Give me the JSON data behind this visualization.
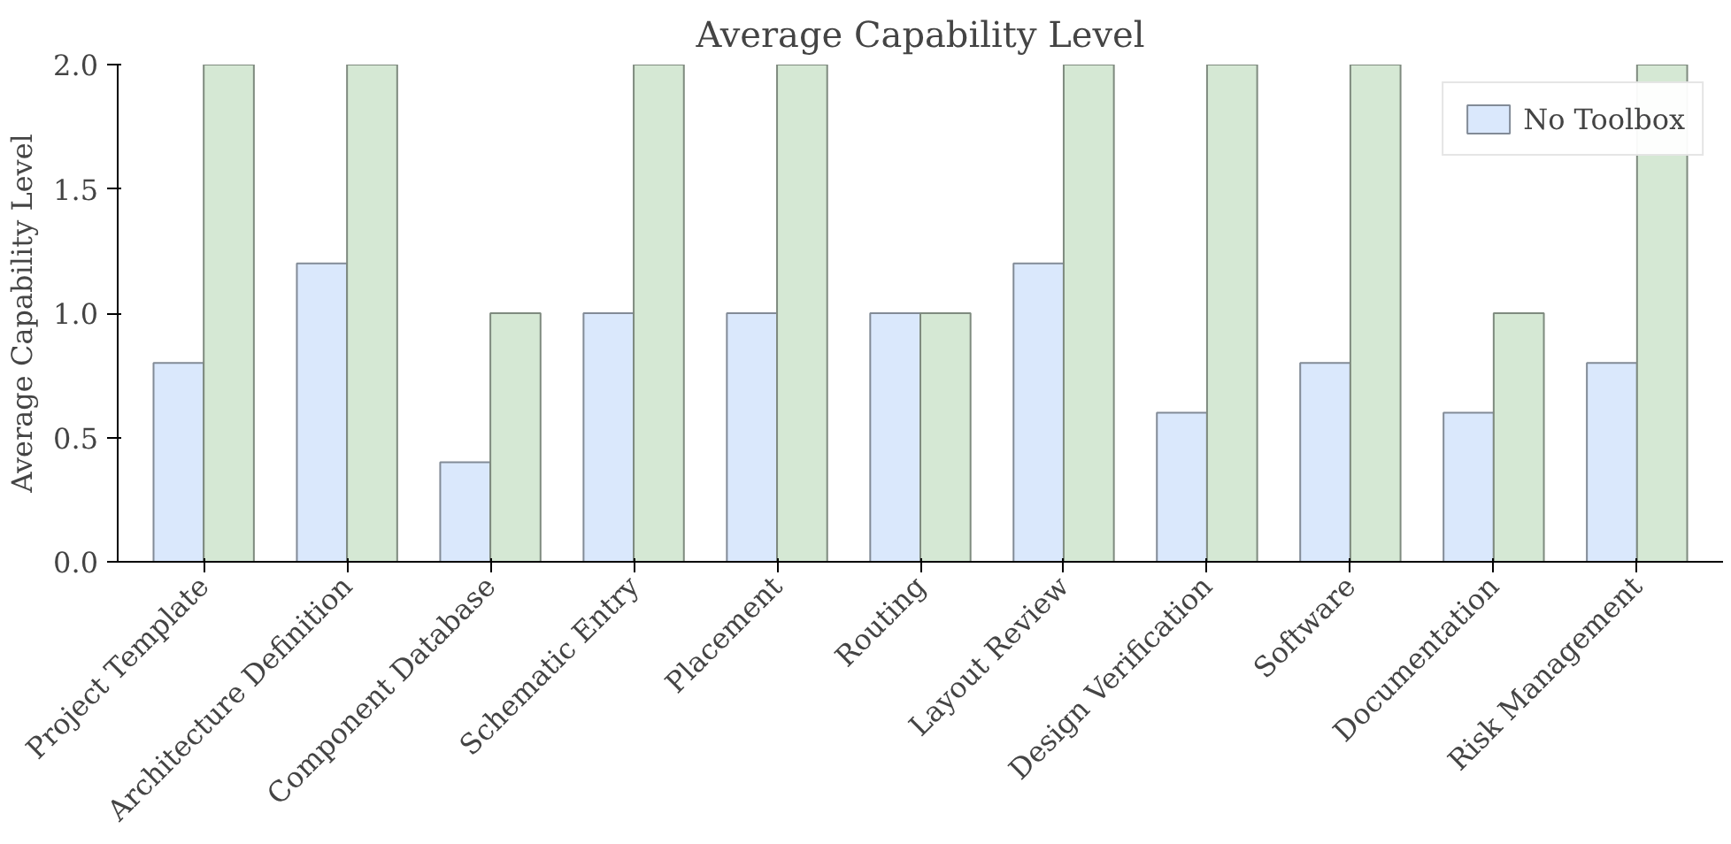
{
  "chart_data": {
    "type": "bar",
    "title": "Average Capability Level",
    "ylabel": "Average Capability Level",
    "categories": [
      "Project Template",
      "Architecture Definition",
      "Component Database",
      "Schematic Entry",
      "Placement",
      "Routing",
      "Layout Review",
      "Design Verification",
      "Software",
      "Documentation",
      "Risk Management"
    ],
    "series": [
      {
        "name": "No Toolbox",
        "color": "#dae8fc",
        "values": [
          0.8,
          1.2,
          0.4,
          1.0,
          1.0,
          1.0,
          1.2,
          0.6,
          0.8,
          0.6,
          0.8
        ]
      },
      {
        "color": "#d5e8d4",
        "values": [
          2.0,
          2.0,
          1.0,
          2.0,
          2.0,
          1.0,
          2.0,
          2.0,
          2.0,
          1.0,
          2.0
        ]
      }
    ],
    "ylim": [
      0,
      2
    ],
    "yticks": [
      {
        "value": 0,
        "label": "0.0"
      },
      0.5,
      {
        "value": 1,
        "label": "1.0"
      },
      1.5,
      {
        "value": 2,
        "label": "2.0"
      }
    ],
    "grid": false,
    "legend": "top right"
  }
}
